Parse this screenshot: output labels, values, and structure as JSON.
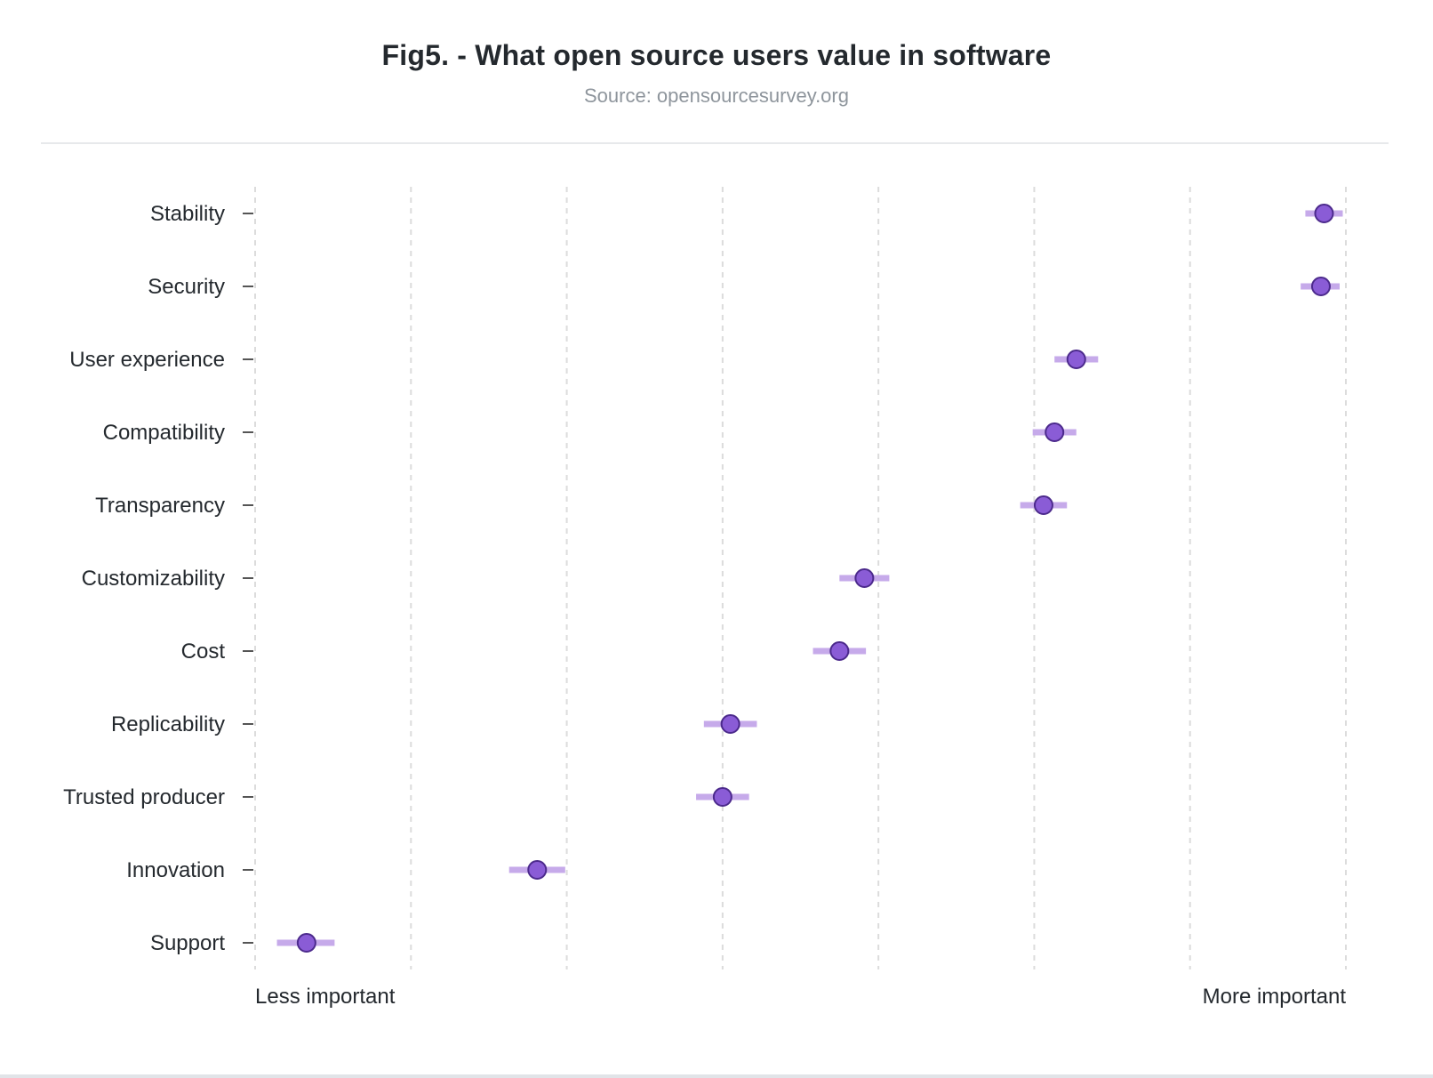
{
  "title": "Fig5. - What open source users value in software",
  "subtitle": "Source: opensourcesurvey.org",
  "chart_data": {
    "type": "scatter",
    "title": "Fig5. - What open source users value in software",
    "subtitle": "Source: opensourcesurvey.org",
    "xlabel_left": "Less important",
    "xlabel_right": "More important",
    "xlim": [
      0,
      7
    ],
    "grid": true,
    "marker_color": "#8a5cd6",
    "marker_edge_color": "#4c2a8c",
    "interval_color": "#c6aaea",
    "points": [
      {
        "label": "Stability",
        "value": 6.86,
        "low": 6.74,
        "high": 6.98
      },
      {
        "label": "Security",
        "value": 6.84,
        "low": 6.71,
        "high": 6.96
      },
      {
        "label": "User experience",
        "value": 5.27,
        "low": 5.13,
        "high": 5.41
      },
      {
        "label": "Compatibility",
        "value": 5.13,
        "low": 4.99,
        "high": 5.27
      },
      {
        "label": "Transparency",
        "value": 5.06,
        "low": 4.91,
        "high": 5.21
      },
      {
        "label": "Customizability",
        "value": 3.91,
        "low": 3.75,
        "high": 4.07
      },
      {
        "label": "Cost",
        "value": 3.75,
        "low": 3.58,
        "high": 3.92
      },
      {
        "label": "Replicability",
        "value": 3.05,
        "low": 2.88,
        "high": 3.22
      },
      {
        "label": "Trusted producer",
        "value": 3.0,
        "low": 2.83,
        "high": 3.17
      },
      {
        "label": "Innovation",
        "value": 1.81,
        "low": 1.63,
        "high": 1.99
      },
      {
        "label": "Support",
        "value": 0.33,
        "low": 0.14,
        "high": 0.51
      }
    ]
  }
}
